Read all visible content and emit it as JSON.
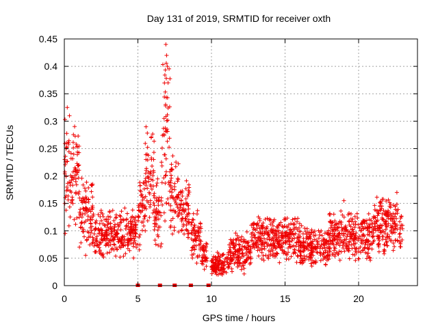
{
  "chart_data": {
    "type": "scatter",
    "title": "Day 131 of 2019, SRMTID for receiver oxth",
    "xlabel": "GPS time / hours",
    "ylabel": "SRMTID / TECUs",
    "xlim": [
      0,
      24
    ],
    "ylim": [
      0,
      0.45
    ],
    "x_ticks": [
      "0",
      "5",
      "10",
      "15",
      "20"
    ],
    "y_ticks": [
      "0",
      "0.05",
      "0.1",
      "0.15",
      "0.2",
      "0.25",
      "0.3",
      "0.35",
      "0.4",
      "0.45"
    ],
    "grid": true,
    "colors": {
      "series": "#ee0000"
    },
    "marker": "plus",
    "series_segments": [
      {
        "x_start": 0.0,
        "x_end": 1.0,
        "baseline": 0.2,
        "spread": 0.12
      },
      {
        "x_start": 1.0,
        "x_end": 2.0,
        "baseline": 0.13,
        "spread": 0.08
      },
      {
        "x_start": 2.0,
        "x_end": 4.9,
        "baseline": 0.095,
        "spread": 0.05
      },
      {
        "x_start": 5.0,
        "x_end": 5.5,
        "baseline": 0.14,
        "spread": 0.08
      },
      {
        "x_start": 5.5,
        "x_end": 6.1,
        "baseline": 0.2,
        "spread": 0.1
      },
      {
        "x_start": 6.1,
        "x_end": 6.6,
        "baseline": 0.13,
        "spread": 0.08
      },
      {
        "x_start": 6.6,
        "x_end": 7.2,
        "baseline": 0.26,
        "spread": 0.16
      },
      {
        "x_start": 7.2,
        "x_end": 7.8,
        "baseline": 0.16,
        "spread": 0.08
      },
      {
        "x_start": 7.8,
        "x_end": 8.5,
        "baseline": 0.14,
        "spread": 0.06
      },
      {
        "x_start": 8.6,
        "x_end": 9.3,
        "baseline": 0.09,
        "spread": 0.05
      },
      {
        "x_start": 9.3,
        "x_end": 9.7,
        "baseline": 0.055,
        "spread": 0.03
      },
      {
        "x_start": 10.0,
        "x_end": 11.2,
        "baseline": 0.04,
        "spread": 0.025
      },
      {
        "x_start": 11.2,
        "x_end": 12.7,
        "baseline": 0.06,
        "spread": 0.04
      },
      {
        "x_start": 12.7,
        "x_end": 16.0,
        "baseline": 0.085,
        "spread": 0.045
      },
      {
        "x_start": 16.0,
        "x_end": 18.0,
        "baseline": 0.07,
        "spread": 0.04
      },
      {
        "x_start": 18.0,
        "x_end": 21.0,
        "baseline": 0.09,
        "spread": 0.05
      },
      {
        "x_start": 21.0,
        "x_end": 23.0,
        "baseline": 0.11,
        "spread": 0.06
      }
    ],
    "peaks": [
      {
        "x": 0.2,
        "y": 0.325
      },
      {
        "x": 0.35,
        "y": 0.31
      },
      {
        "x": 5.9,
        "y": 0.27
      },
      {
        "x": 6.9,
        "y": 0.44
      },
      {
        "x": 6.95,
        "y": 0.42
      },
      {
        "x": 7.0,
        "y": 0.4
      },
      {
        "x": 7.05,
        "y": 0.37
      },
      {
        "x": 19.0,
        "y": 0.155
      },
      {
        "x": 22.6,
        "y": 0.17
      }
    ],
    "zero_markers_x": [
      5.0,
      6.5,
      7.5,
      8.6,
      9.8
    ]
  }
}
